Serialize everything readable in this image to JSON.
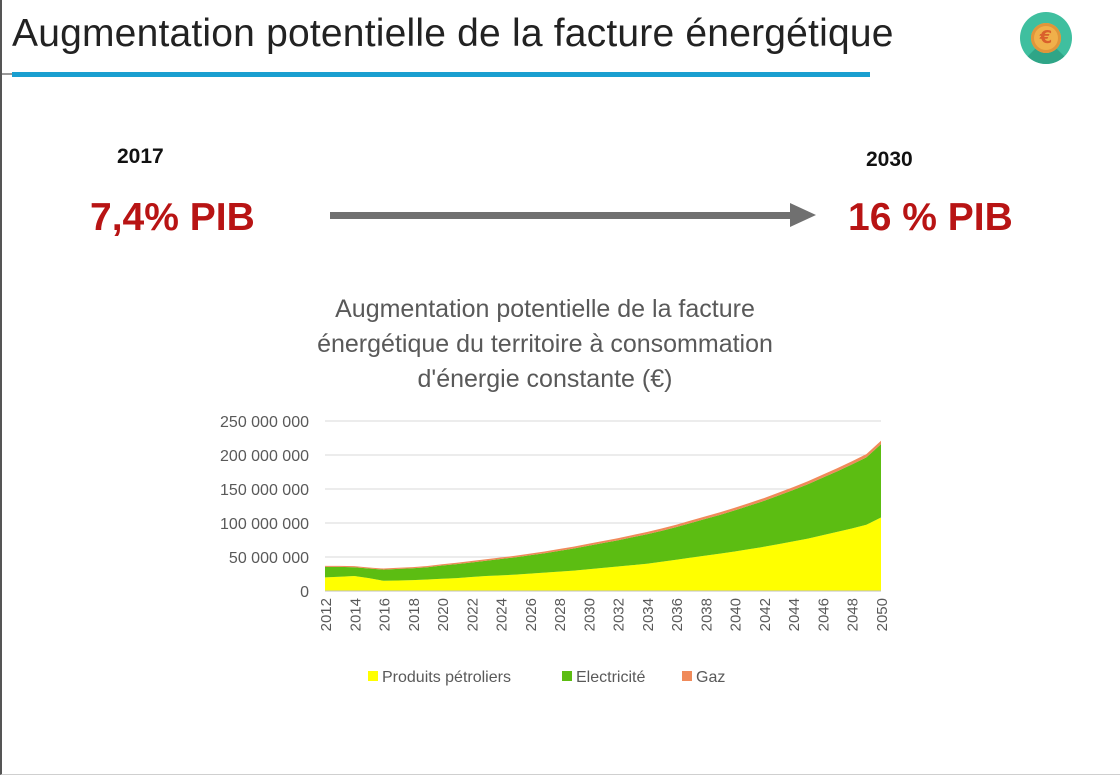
{
  "slide": {
    "title": "Augmentation potentielle de la facture énergétique",
    "icon": "euro-coin-icon",
    "start_year": "2017",
    "start_value": "7,4% PIB",
    "end_year": "2030",
    "end_value": "16 % PIB",
    "colors": {
      "accent_rule": "#1a9fd0",
      "highlight": "#b81414",
      "arrow": "#707070"
    }
  },
  "chart_data": {
    "type": "area",
    "stacked": true,
    "title_lines": [
      "Augmentation potentielle de la facture",
      "énergétique du territoire à consommation",
      "d'énergie constante (€)"
    ],
    "x": [
      2012,
      2013,
      2014,
      2015,
      2016,
      2017,
      2018,
      2019,
      2020,
      2021,
      2022,
      2023,
      2024,
      2025,
      2026,
      2027,
      2028,
      2029,
      2030,
      2031,
      2032,
      2033,
      2034,
      2035,
      2036,
      2037,
      2038,
      2039,
      2040,
      2041,
      2042,
      2043,
      2044,
      2045,
      2046,
      2047,
      2048,
      2049,
      2050
    ],
    "xticks": [
      "2012",
      "2014",
      "2016",
      "2018",
      "2020",
      "2022",
      "2024",
      "2026",
      "2028",
      "2030",
      "2032",
      "2034",
      "2036",
      "2038",
      "2040",
      "2042",
      "2044",
      "2046",
      "2048",
      "2050"
    ],
    "ylim": [
      0,
      250000000
    ],
    "yticks": [
      0,
      50000000,
      100000000,
      150000000,
      200000000,
      250000000
    ],
    "ytick_labels": [
      "0",
      "50 000 000",
      "100 000 000",
      "150 000 000",
      "200 000 000",
      "250 000 000"
    ],
    "series": [
      {
        "name": "Produits pétroliers",
        "color": "#ffff00",
        "values": [
          20000000,
          21000000,
          22000000,
          19000000,
          15000000,
          15500000,
          16000000,
          17000000,
          18000000,
          19000000,
          20500000,
          22000000,
          23000000,
          24000000,
          25500000,
          27000000,
          28500000,
          30000000,
          32000000,
          34000000,
          36000000,
          38000000,
          40000000,
          43000000,
          46000000,
          49000000,
          52000000,
          55000000,
          58000000,
          61500000,
          65000000,
          69000000,
          73000000,
          77000000,
          82000000,
          87000000,
          92000000,
          97500000,
          108000000
        ]
      },
      {
        "name": "Electricité",
        "color": "#5cbd12",
        "values": [
          15500000,
          14500000,
          13000000,
          14000000,
          16500000,
          17000000,
          17500000,
          18000000,
          19500000,
          20500000,
          21500000,
          22500000,
          24000000,
          25500000,
          27000000,
          28500000,
          30500000,
          32500000,
          34500000,
          36500000,
          38500000,
          41000000,
          43500000,
          45500000,
          48000000,
          51000000,
          54000000,
          57000000,
          60500000,
          64000000,
          67500000,
          71500000,
          75500000,
          80000000,
          84500000,
          89000000,
          94000000,
          99000000,
          108000000
        ]
      },
      {
        "name": "Gaz",
        "color": "#f08a5a",
        "values": [
          1500000,
          1500000,
          1500000,
          1500000,
          1500000,
          1600000,
          1700000,
          1800000,
          1900000,
          2000000,
          2100000,
          2200000,
          2300000,
          2400000,
          2500000,
          2600000,
          2700000,
          2800000,
          2900000,
          3000000,
          3100000,
          3200000,
          3300000,
          3400000,
          3500000,
          3600000,
          3700000,
          3800000,
          3900000,
          4000000,
          4100000,
          4200000,
          4300000,
          4400000,
          4500000,
          4600000,
          4700000,
          4800000,
          5000000
        ]
      }
    ],
    "grid": true,
    "legend_position": "bottom"
  }
}
